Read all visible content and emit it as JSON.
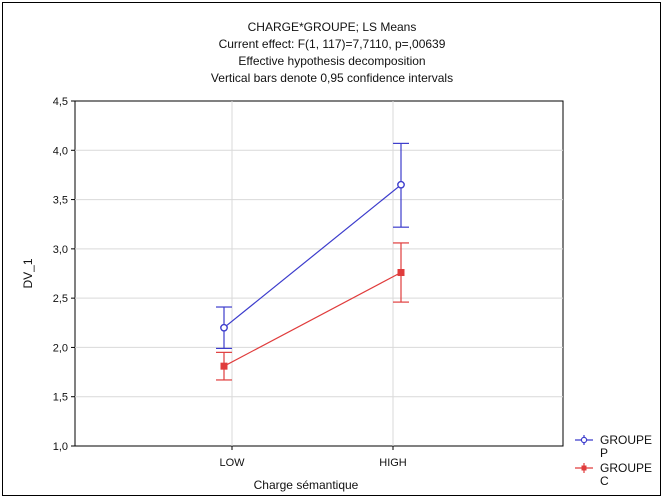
{
  "chart_data": {
    "type": "line",
    "title_lines": [
      "CHARGE*GROUPE; LS Means",
      "Current effect: F(1, 117)=7,7110, p=,00639",
      "Effective hypothesis decomposition",
      "Vertical bars denote 0,95 confidence intervals"
    ],
    "xlabel": "Charge sémantique",
    "ylabel": "DV_1",
    "categories": [
      "LOW",
      "HIGH"
    ],
    "ylim": [
      1.0,
      4.5
    ],
    "yticks": [
      1.0,
      1.5,
      2.0,
      2.5,
      3.0,
      3.5,
      4.0,
      4.5
    ],
    "ytick_labels": [
      "1,0",
      "1,5",
      "2,0",
      "2,5",
      "3,0",
      "3,5",
      "4,0",
      "4,5"
    ],
    "grid": true,
    "legend_position": "bottom-right",
    "series": [
      {
        "name": "GROUPE P",
        "legend_lines": [
          "GROUPE",
          "P"
        ],
        "color": "#3c3ccc",
        "marker": "circle",
        "values": [
          2.2,
          3.65
        ],
        "ci_low": [
          1.99,
          3.22
        ],
        "ci_high": [
          2.41,
          4.07
        ]
      },
      {
        "name": "GROUPE C",
        "legend_lines": [
          "GROUPE",
          "C"
        ],
        "color": "#e03c3c",
        "marker": "square",
        "values": [
          1.81,
          2.76
        ],
        "ci_low": [
          1.67,
          2.46
        ],
        "ci_high": [
          1.95,
          3.06
        ]
      }
    ]
  }
}
